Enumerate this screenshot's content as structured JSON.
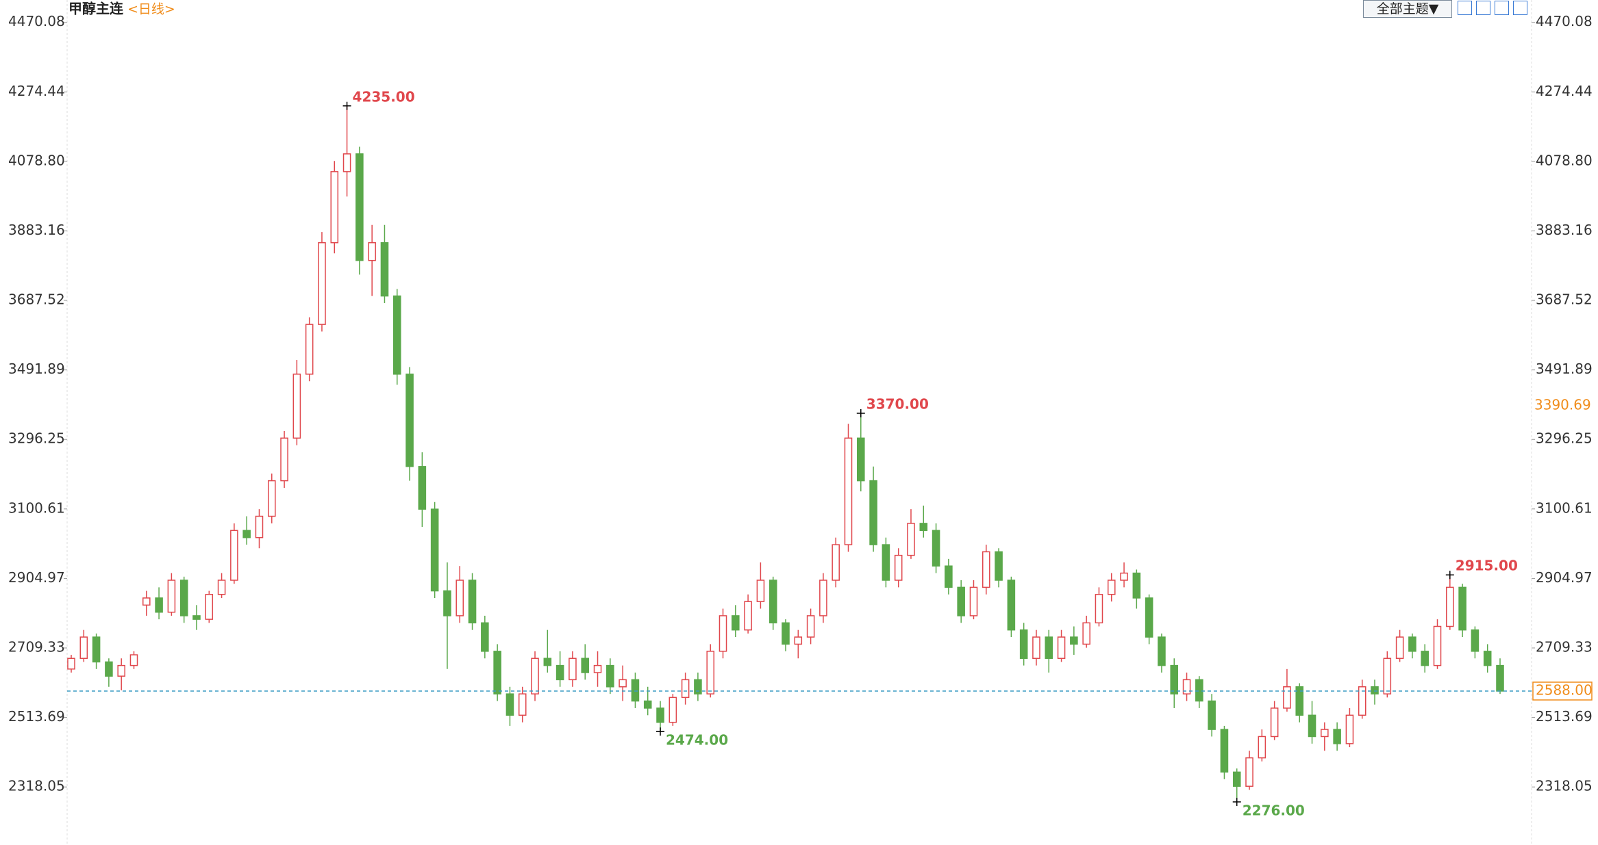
{
  "chart_data": {
    "type": "candlestick",
    "title": "甲醇主连",
    "subtitle": "<日线>",
    "toolbar": "全部主题▼",
    "ylim": [
      2154.7,
      4533.1
    ],
    "yticks": [
      4470.08,
      4274.44,
      {
        "value": 4078.8,
        "label": "4078.80"
      },
      3883.16,
      3687.52,
      3491.89,
      3296.25,
      3100.61,
      2904.97,
      2709.33,
      2513.69,
      2318.05
    ],
    "marker_price": 3390.69,
    "last_price": {
      "value": 2588,
      "label": "2588.00"
    },
    "up_color": "#e0474c",
    "down_color": "#5aa84a",
    "annotations": [
      {
        "value": 4235,
        "label": "4235.00"
      },
      {
        "value": 3370,
        "label": "3370.00"
      },
      {
        "value": 2474,
        "label": "2474.00"
      },
      {
        "value": 2276,
        "label": "2276.00"
      },
      {
        "value": 2915,
        "label": "2915.00"
      }
    ],
    "candles": [
      [
        2650,
        2690,
        2640,
        2680
      ],
      [
        2680,
        2760,
        2670,
        2740
      ],
      [
        2740,
        2750,
        2650,
        2670
      ],
      [
        2670,
        2680,
        2600,
        2630
      ],
      [
        2630,
        2680,
        2590,
        2660
      ],
      [
        2660,
        2700,
        2650,
        2690
      ],
      [
        2830,
        2870,
        2800,
        2850
      ],
      [
        2850,
        2880,
        2790,
        2810
      ],
      [
        2810,
        2920,
        2800,
        2900
      ],
      [
        2900,
        2910,
        2780,
        2800
      ],
      [
        2800,
        2830,
        2760,
        2790
      ],
      [
        2790,
        2870,
        2780,
        2860
      ],
      [
        2860,
        2920,
        2850,
        2900
      ],
      [
        2900,
        3060,
        2890,
        3040
      ],
      [
        3040,
        3080,
        3000,
        3020
      ],
      [
        3020,
        3100,
        2990,
        3080
      ],
      [
        3080,
        3200,
        3060,
        3180
      ],
      [
        3180,
        3320,
        3160,
        3300
      ],
      [
        3300,
        3520,
        3280,
        3480
      ],
      [
        3480,
        3640,
        3460,
        3620
      ],
      [
        3620,
        3880,
        3600,
        3850
      ],
      [
        3850,
        4080,
        3820,
        4050
      ],
      [
        4050,
        4235,
        3980,
        4100
      ],
      [
        4100,
        4120,
        3760,
        3800
      ],
      [
        3800,
        3900,
        3700,
        3850
      ],
      [
        3850,
        3900,
        3680,
        3700
      ],
      [
        3700,
        3720,
        3450,
        3480
      ],
      [
        3480,
        3500,
        3180,
        3220
      ],
      [
        3220,
        3260,
        3050,
        3100
      ],
      [
        3100,
        3120,
        2850,
        2870
      ],
      [
        2870,
        2950,
        2650,
        2800
      ],
      [
        2800,
        2940,
        2780,
        2900
      ],
      [
        2900,
        2920,
        2760,
        2780
      ],
      [
        2780,
        2800,
        2680,
        2700
      ],
      [
        2700,
        2720,
        2560,
        2580
      ],
      [
        2580,
        2600,
        2490,
        2520
      ],
      [
        2520,
        2600,
        2500,
        2580
      ],
      [
        2580,
        2700,
        2560,
        2680
      ],
      [
        2680,
        2760,
        2640,
        2660
      ],
      [
        2660,
        2700,
        2600,
        2620
      ],
      [
        2620,
        2700,
        2600,
        2680
      ],
      [
        2680,
        2720,
        2620,
        2640
      ],
      [
        2640,
        2700,
        2600,
        2660
      ],
      [
        2660,
        2680,
        2580,
        2600
      ],
      [
        2600,
        2660,
        2560,
        2620
      ],
      [
        2620,
        2640,
        2540,
        2560
      ],
      [
        2560,
        2600,
        2520,
        2540
      ],
      [
        2540,
        2560,
        2474,
        2500
      ],
      [
        2500,
        2580,
        2490,
        2570
      ],
      [
        2570,
        2640,
        2550,
        2620
      ],
      [
        2620,
        2640,
        2560,
        2580
      ],
      [
        2580,
        2720,
        2570,
        2700
      ],
      [
        2700,
        2820,
        2680,
        2800
      ],
      [
        2800,
        2830,
        2740,
        2760
      ],
      [
        2760,
        2860,
        2750,
        2840
      ],
      [
        2840,
        2950,
        2820,
        2900
      ],
      [
        2900,
        2910,
        2760,
        2780
      ],
      [
        2780,
        2790,
        2700,
        2720
      ],
      [
        2720,
        2760,
        2680,
        2740
      ],
      [
        2740,
        2820,
        2720,
        2800
      ],
      [
        2800,
        2920,
        2780,
        2900
      ],
      [
        2900,
        3020,
        2880,
        3000
      ],
      [
        3000,
        3340,
        2980,
        3300
      ],
      [
        3300,
        3370,
        3150,
        3180
      ],
      [
        3180,
        3220,
        2980,
        3000
      ],
      [
        3000,
        3020,
        2880,
        2900
      ],
      [
        2900,
        2990,
        2880,
        2970
      ],
      [
        2970,
        3100,
        2960,
        3060
      ],
      [
        3060,
        3110,
        3020,
        3040
      ],
      [
        3040,
        3060,
        2920,
        2940
      ],
      [
        2940,
        2960,
        2860,
        2880
      ],
      [
        2880,
        2900,
        2780,
        2800
      ],
      [
        2800,
        2900,
        2790,
        2880
      ],
      [
        2880,
        3000,
        2860,
        2980
      ],
      [
        2980,
        2990,
        2880,
        2900
      ],
      [
        2900,
        2910,
        2740,
        2760
      ],
      [
        2760,
        2780,
        2660,
        2680
      ],
      [
        2680,
        2760,
        2660,
        2740
      ],
      [
        2740,
        2760,
        2640,
        2680
      ],
      [
        2680,
        2760,
        2670,
        2740
      ],
      [
        2740,
        2770,
        2690,
        2720
      ],
      [
        2720,
        2800,
        2710,
        2780
      ],
      [
        2780,
        2880,
        2770,
        2860
      ],
      [
        2860,
        2920,
        2840,
        2900
      ],
      [
        2900,
        2950,
        2880,
        2920
      ],
      [
        2920,
        2930,
        2820,
        2850
      ],
      [
        2850,
        2860,
        2720,
        2740
      ],
      [
        2740,
        2750,
        2640,
        2660
      ],
      [
        2660,
        2680,
        2540,
        2580
      ],
      [
        2580,
        2640,
        2560,
        2620
      ],
      [
        2620,
        2630,
        2540,
        2560
      ],
      [
        2560,
        2580,
        2460,
        2480
      ],
      [
        2480,
        2490,
        2340,
        2360
      ],
      [
        2360,
        2370,
        2276,
        2320
      ],
      [
        2320,
        2420,
        2310,
        2400
      ],
      [
        2400,
        2480,
        2390,
        2460
      ],
      [
        2460,
        2560,
        2450,
        2540
      ],
      [
        2540,
        2650,
        2530,
        2600
      ],
      [
        2600,
        2610,
        2500,
        2520
      ],
      [
        2520,
        2560,
        2440,
        2460
      ],
      [
        2460,
        2500,
        2420,
        2480
      ],
      [
        2480,
        2500,
        2420,
        2440
      ],
      [
        2440,
        2540,
        2430,
        2520
      ],
      [
        2520,
        2620,
        2510,
        2600
      ],
      [
        2600,
        2620,
        2550,
        2580
      ],
      [
        2580,
        2700,
        2570,
        2680
      ],
      [
        2680,
        2760,
        2670,
        2740
      ],
      [
        2740,
        2750,
        2680,
        2700
      ],
      [
        2700,
        2720,
        2640,
        2660
      ],
      [
        2660,
        2790,
        2650,
        2770
      ],
      [
        2770,
        2915,
        2760,
        2880
      ],
      [
        2880,
        2890,
        2740,
        2760
      ],
      [
        2760,
        2770,
        2680,
        2700
      ],
      [
        2700,
        2720,
        2640,
        2660
      ],
      [
        2660,
        2680,
        2580,
        2588
      ]
    ]
  }
}
